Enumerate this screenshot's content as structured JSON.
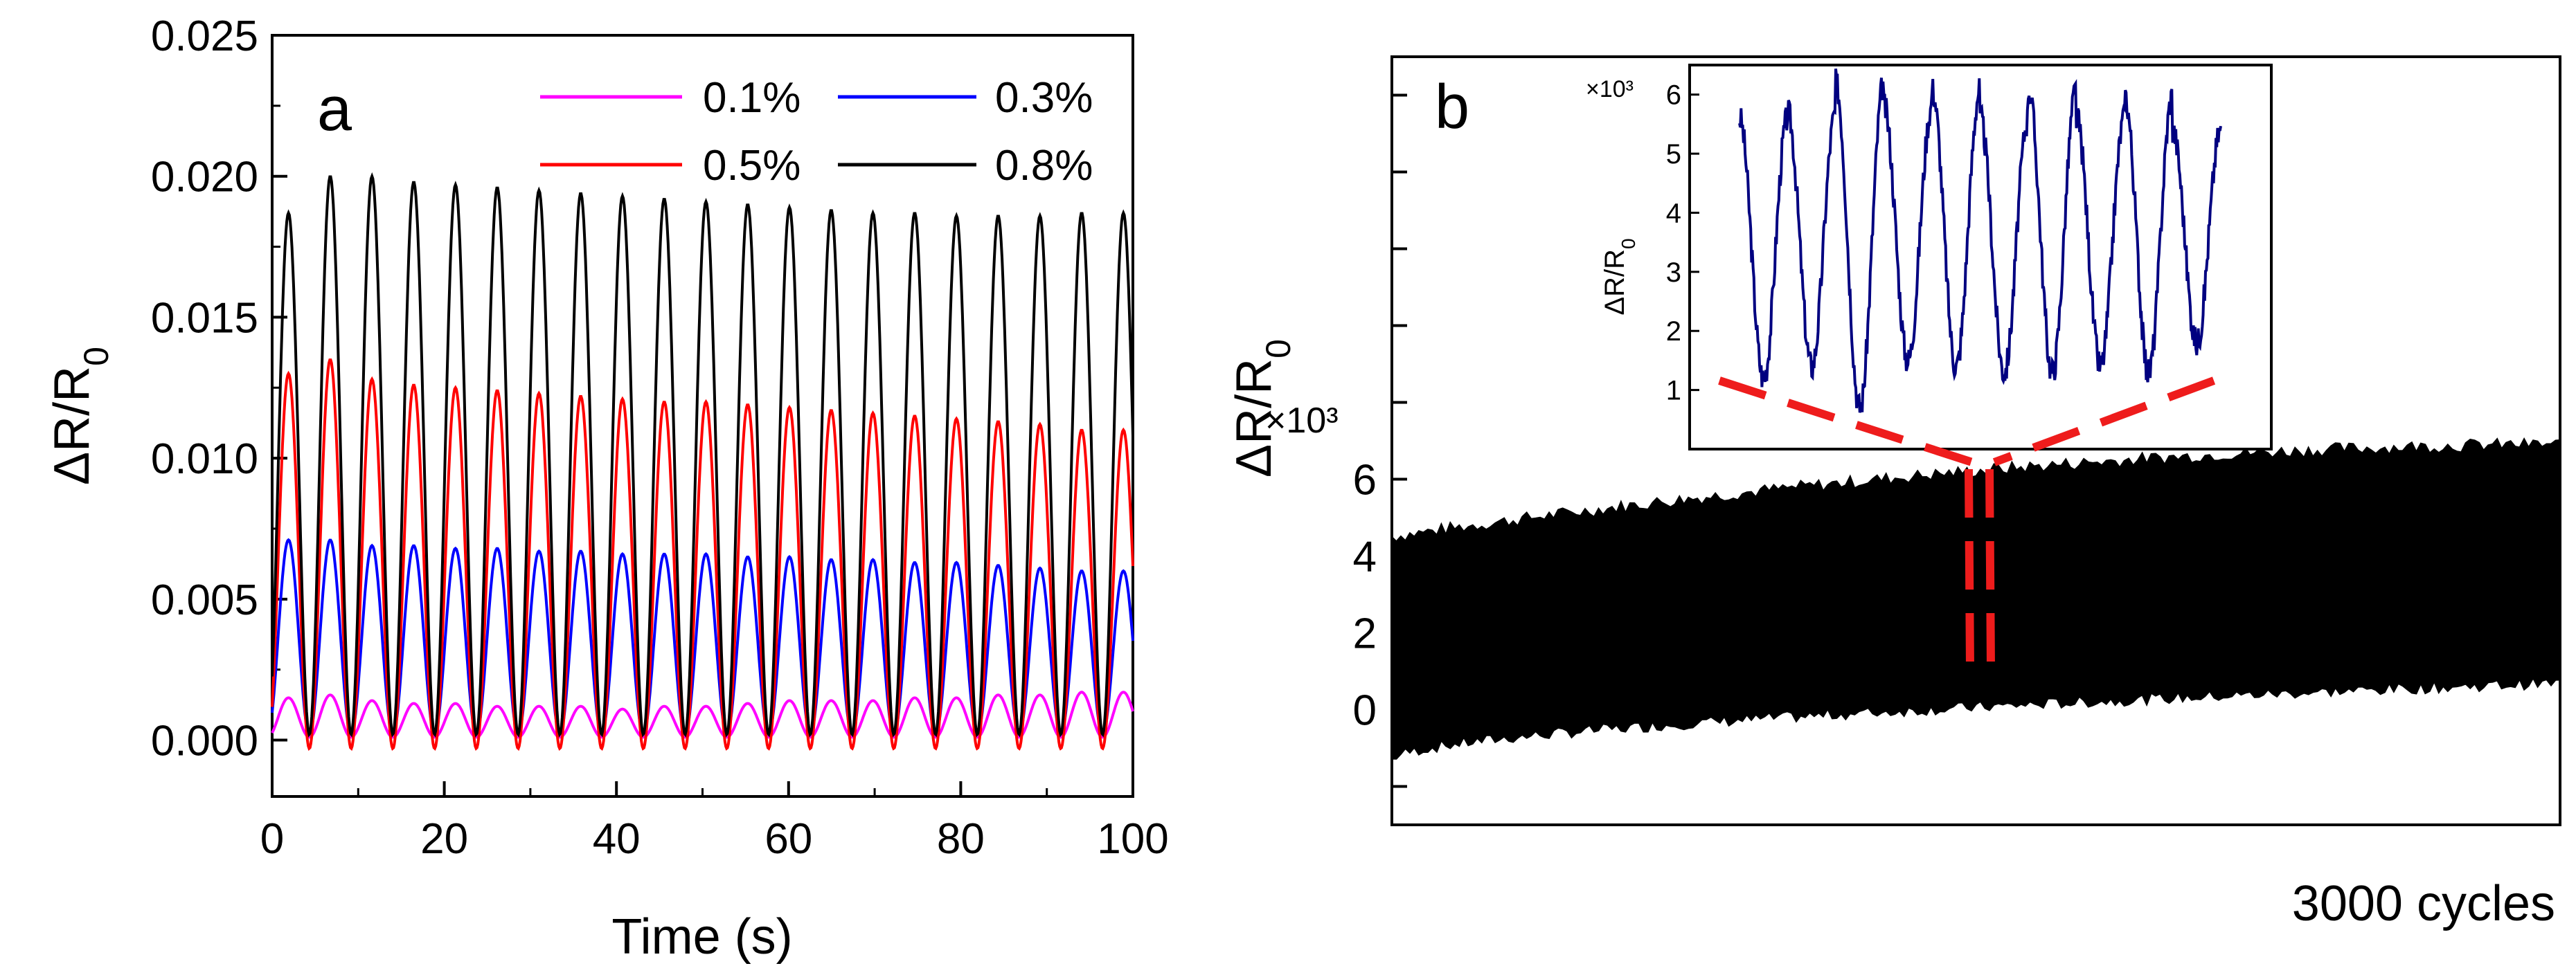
{
  "chart_data": [
    {
      "panel": "a",
      "type": "line",
      "xlabel": "Time (s)",
      "ylabel": "ΔR/R0",
      "xlim": [
        0,
        100
      ],
      "ylim": [
        -0.002,
        0.025
      ],
      "xticks": [
        "0",
        "20",
        "40",
        "60",
        "80",
        "100"
      ],
      "yticks": [
        "0.000",
        "0.005",
        "0.010",
        "0.015",
        "0.020",
        "0.025"
      ],
      "period_s": 4.85,
      "legend_position": "top-right",
      "series": [
        {
          "name": "0.1%",
          "color": "#ff00ff",
          "baseline": 0.0001,
          "peaks": [
            0.0015,
            0.0016,
            0.0014,
            0.0013,
            0.0013,
            0.0012,
            0.0012,
            0.0012,
            0.0011,
            0.0012,
            0.0012,
            0.0013,
            0.0014,
            0.0014,
            0.0014,
            0.0015,
            0.0015,
            0.0016,
            0.0016,
            0.0017
          ]
        },
        {
          "name": "0.3%",
          "color": "#0000ff",
          "baseline": 0.0002,
          "peaks": [
            0.0071,
            0.0071,
            0.0069,
            0.0069,
            0.0068,
            0.0068,
            0.0067,
            0.0067,
            0.0066,
            0.0066,
            0.0066,
            0.0065,
            0.0065,
            0.0064,
            0.0064,
            0.0063,
            0.0063,
            0.0062,
            0.0061,
            0.006
          ]
        },
        {
          "name": "0.5%",
          "color": "#ff0000",
          "baseline": -0.0003,
          "peaks": [
            0.013,
            0.0135,
            0.0128,
            0.0126,
            0.0125,
            0.0124,
            0.0123,
            0.0122,
            0.0121,
            0.012,
            0.012,
            0.0119,
            0.0118,
            0.0117,
            0.0116,
            0.0115,
            0.0114,
            0.0113,
            0.0112,
            0.011
          ]
        },
        {
          "name": "0.8%",
          "color": "#000000",
          "baseline": 0.0002,
          "peaks": [
            0.0187,
            0.02,
            0.02,
            0.0198,
            0.0197,
            0.0196,
            0.0195,
            0.0194,
            0.0193,
            0.0192,
            0.0191,
            0.019,
            0.0189,
            0.0188,
            0.0187,
            0.0187,
            0.0186,
            0.0186,
            0.0186,
            0.0187
          ]
        }
      ]
    },
    {
      "panel": "b",
      "type": "line",
      "xlabel": "3000 cycles",
      "ylabel": "ΔR/R0",
      "y_multiplier": "×10³",
      "ylim": [
        -3,
        17
      ],
      "yticks": [
        "0",
        "2",
        "4",
        "6"
      ],
      "series": [
        {
          "name": "3000 cycles",
          "color": "#000000",
          "lower_start": -1.3,
          "lower_end": 0.7,
          "upper_start": 4.5,
          "upper_end": 6.9
        }
      ],
      "inset": {
        "ylabel": "ΔR/R0",
        "y_multiplier": "×10³",
        "ylim": [
          0,
          6.5
        ],
        "yticks": [
          "1",
          "2",
          "3",
          "4",
          "5",
          "6"
        ],
        "series_color": "#000080",
        "peaks": [
          5.6,
          5.7,
          6.2,
          5.8,
          6.1,
          5.6,
          6.1,
          5.6,
          6.0,
          5.4
        ],
        "valleys": [
          1.2,
          1.4,
          0.7,
          1.5,
          1.4,
          1.3,
          1.3,
          1.4,
          1.3,
          1.8
        ]
      }
    }
  ]
}
